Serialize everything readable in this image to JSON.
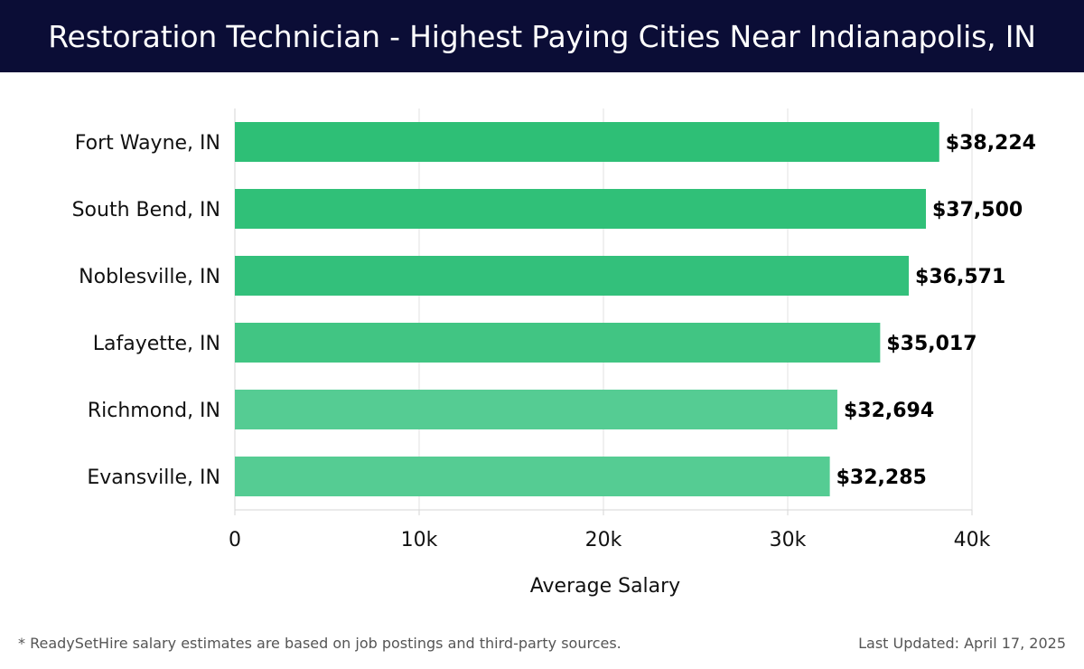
{
  "header": {
    "title": "Restoration Technician - Highest Paying Cities Near Indianapolis, IN"
  },
  "chart_data": {
    "type": "bar",
    "orientation": "horizontal",
    "categories": [
      "Fort Wayne, IN",
      "South Bend, IN",
      "Noblesville, IN",
      "Lafayette, IN",
      "Richmond, IN",
      "Evansville, IN"
    ],
    "values": [
      38224,
      37500,
      36571,
      35017,
      32694,
      32285
    ],
    "value_labels": [
      "$38,224",
      "$37,500",
      "$36,571",
      "$35,017",
      "$32,694",
      "$32,285"
    ],
    "bar_colors": [
      "#2ebf76",
      "#30c078",
      "#33c07b",
      "#41c583",
      "#55cc93",
      "#55cc93"
    ],
    "xlabel": "Average Salary",
    "ylabel": "",
    "xlim": [
      0,
      40000
    ],
    "x_ticks": [
      0,
      10000,
      20000,
      30000,
      40000
    ],
    "x_tick_labels": [
      "0",
      "10k",
      "20k",
      "30k",
      "40k"
    ],
    "grid": "vertical",
    "legend": "none"
  },
  "footer": {
    "note": "* ReadySetHire salary estimates are based on job postings and third-party sources.",
    "updated": "Last Updated: April 17, 2025"
  },
  "colors": {
    "header_bg": "#0b0d36",
    "grid": "#e2e2e2",
    "text": "#111111"
  }
}
